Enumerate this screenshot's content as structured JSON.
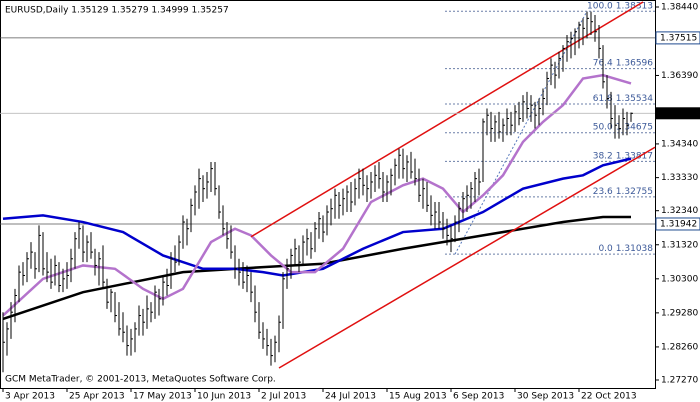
{
  "chart_data": {
    "type": "ohlc",
    "title": "EURUSD,Daily  1.35129 1.35279 1.34999 1.35257",
    "copyright": "GCM MetaTrader, © 2001-2013, MetaQuotes Software Corp.",
    "color": "#000000",
    "xlim": [
      -0.75,
      163
    ],
    "ylim": [
      1.2703,
      1.3862
    ],
    "xticks": [
      {
        "value": 0,
        "label": "3 Apr 2013"
      },
      {
        "value": 16,
        "label": "25 Apr 2013"
      },
      {
        "value": 32,
        "label": "17 May 2013"
      },
      {
        "value": 48,
        "label": "10 Jun 2013"
      },
      {
        "value": 64,
        "label": "2 Jul 2013"
      },
      {
        "value": 80,
        "label": "24 Jul 2013"
      },
      {
        "value": 96,
        "label": "15 Aug 2013"
      },
      {
        "value": 112,
        "label": "6 Sep 2013"
      },
      {
        "value": 128,
        "label": "30 Sep 2013"
      },
      {
        "value": 144,
        "label": "22 Oct 2013"
      }
    ],
    "yticks": [
      {
        "value": 1.3844,
        "label": "1.38440"
      },
      {
        "value": 1.3639,
        "label": "1.36390"
      },
      {
        "value": 1.3434,
        "label": "1.34340"
      },
      {
        "value": 1.3333,
        "label": "1.33330"
      },
      {
        "value": 1.3234,
        "label": "1.32340"
      },
      {
        "value": 1.3132,
        "label": "1.31320"
      },
      {
        "value": 1.303,
        "label": "1.30300"
      },
      {
        "value": 1.2928,
        "label": "1.29280"
      },
      {
        "value": 1.2826,
        "label": "1.28260"
      },
      {
        "value": 1.2727,
        "label": "1.27270"
      }
    ],
    "high": [
      1.293,
      1.29,
      1.296,
      1.3,
      1.307,
      1.308,
      1.311,
      1.314,
      1.311,
      1.319,
      1.317,
      1.311,
      1.309,
      1.31,
      1.308,
      1.306,
      1.308,
      1.312,
      1.317,
      1.32,
      1.319,
      1.316,
      1.317,
      1.312,
      1.311,
      1.313,
      1.303,
      1.3,
      1.299,
      1.296,
      1.293,
      1.289,
      1.288,
      1.29,
      1.295,
      1.294,
      1.298,
      1.296,
      1.301,
      1.3,
      1.304,
      1.306,
      1.311,
      1.313,
      1.316,
      1.322,
      1.321,
      1.327,
      1.331,
      1.336,
      1.334,
      1.335,
      1.338,
      1.338,
      1.331,
      1.325,
      1.32,
      1.319,
      1.313,
      1.309,
      1.308,
      1.307,
      1.305,
      1.301,
      1.296,
      1.29,
      1.288,
      1.285,
      1.286,
      1.292,
      1.305,
      1.309,
      1.312,
      1.315,
      1.313,
      1.316,
      1.318,
      1.317,
      1.32,
      1.323,
      1.322,
      1.325,
      1.327,
      1.33,
      1.329,
      1.33,
      1.331,
      1.332,
      1.333,
      1.336,
      1.336,
      1.334,
      1.335,
      1.337,
      1.338,
      1.335,
      1.334,
      1.336,
      1.339,
      1.342,
      1.342,
      1.34,
      1.341,
      1.339,
      1.336,
      1.333,
      1.332,
      1.328,
      1.326,
      1.326,
      1.323,
      1.321,
      1.319,
      1.322,
      1.326,
      1.329,
      1.331,
      1.332,
      1.335,
      1.336,
      1.351,
      1.354,
      1.353,
      1.352,
      1.353,
      1.351,
      1.354,
      1.353,
      1.355,
      1.356,
      1.358,
      1.359,
      1.358,
      1.356,
      1.357,
      1.36,
      1.365,
      1.369,
      1.368,
      1.371,
      1.373,
      1.376,
      1.377,
      1.378,
      1.38,
      1.381,
      1.383,
      1.383,
      1.382,
      1.379,
      1.373,
      1.364,
      1.359,
      1.355,
      1.352,
      1.354,
      1.353,
      1.35279
    ],
    "low": [
      1.275,
      1.28,
      1.285,
      1.29,
      1.296,
      1.301,
      1.302,
      1.306,
      1.303,
      1.305,
      1.304,
      1.302,
      1.3,
      1.301,
      1.299,
      1.299,
      1.3,
      1.302,
      1.306,
      1.312,
      1.308,
      1.308,
      1.309,
      1.304,
      1.301,
      1.3,
      1.294,
      1.293,
      1.29,
      1.286,
      1.284,
      1.28,
      1.28,
      1.281,
      1.286,
      1.286,
      1.288,
      1.29,
      1.291,
      1.292,
      1.295,
      1.298,
      1.3,
      1.305,
      1.307,
      1.312,
      1.313,
      1.317,
      1.322,
      1.324,
      1.326,
      1.327,
      1.329,
      1.328,
      1.321,
      1.316,
      1.312,
      1.309,
      1.303,
      1.301,
      1.3,
      1.299,
      1.296,
      1.29,
      1.285,
      1.282,
      1.28,
      1.277,
      1.278,
      1.281,
      1.288,
      1.3,
      1.303,
      1.307,
      1.305,
      1.307,
      1.31,
      1.309,
      1.311,
      1.315,
      1.314,
      1.316,
      1.319,
      1.321,
      1.321,
      1.322,
      1.323,
      1.323,
      1.325,
      1.327,
      1.328,
      1.326,
      1.327,
      1.329,
      1.33,
      1.326,
      1.326,
      1.328,
      1.331,
      1.333,
      1.333,
      1.332,
      1.333,
      1.331,
      1.326,
      1.324,
      1.323,
      1.319,
      1.318,
      1.318,
      1.315,
      1.313,
      1.311,
      1.314,
      1.317,
      1.321,
      1.323,
      1.324,
      1.326,
      1.328,
      1.332,
      1.346,
      1.344,
      1.344,
      1.345,
      1.344,
      1.346,
      1.346,
      1.347,
      1.349,
      1.35,
      1.351,
      1.35,
      1.348,
      1.349,
      1.352,
      1.355,
      1.361,
      1.36,
      1.363,
      1.365,
      1.368,
      1.369,
      1.37,
      1.372,
      1.373,
      1.375,
      1.376,
      1.374,
      1.369,
      1.36,
      1.354,
      1.348,
      1.345,
      1.345,
      1.346,
      1.346,
      1.34999
    ],
    "close": [
      1.284,
      1.288,
      1.293,
      1.298,
      1.305,
      1.304,
      1.309,
      1.311,
      1.306,
      1.316,
      1.306,
      1.305,
      1.302,
      1.307,
      1.301,
      1.303,
      1.304,
      1.309,
      1.315,
      1.318,
      1.311,
      1.314,
      1.311,
      1.307,
      1.309,
      1.302,
      1.296,
      1.299,
      1.292,
      1.288,
      1.287,
      1.283,
      1.285,
      1.288,
      1.292,
      1.29,
      1.294,
      1.293,
      1.299,
      1.297,
      1.302,
      1.301,
      1.309,
      1.308,
      1.314,
      1.32,
      1.318,
      1.325,
      1.329,
      1.333,
      1.33,
      1.332,
      1.336,
      1.33,
      1.323,
      1.318,
      1.315,
      1.311,
      1.306,
      1.305,
      1.302,
      1.304,
      1.299,
      1.293,
      1.287,
      1.285,
      1.283,
      1.28,
      1.284,
      1.29,
      1.303,
      1.306,
      1.31,
      1.312,
      1.308,
      1.314,
      1.315,
      1.312,
      1.318,
      1.321,
      1.317,
      1.323,
      1.324,
      1.328,
      1.325,
      1.327,
      1.329,
      1.326,
      1.33,
      1.333,
      1.331,
      1.33,
      1.332,
      1.334,
      1.333,
      1.329,
      1.332,
      1.334,
      1.337,
      1.34,
      1.336,
      1.338,
      1.335,
      1.333,
      1.328,
      1.33,
      1.325,
      1.322,
      1.323,
      1.32,
      1.318,
      1.316,
      1.315,
      1.32,
      1.324,
      1.327,
      1.328,
      1.33,
      1.333,
      1.332,
      1.35,
      1.352,
      1.348,
      1.35,
      1.347,
      1.349,
      1.351,
      1.349,
      1.353,
      1.351,
      1.356,
      1.354,
      1.355,
      1.352,
      1.354,
      1.357,
      1.363,
      1.367,
      1.364,
      1.369,
      1.372,
      1.374,
      1.375,
      1.377,
      1.379,
      1.378,
      1.381,
      1.38,
      1.377,
      1.372,
      1.362,
      1.357,
      1.351,
      1.349,
      1.348,
      1.351,
      1.349,
      1.35257
    ],
    "series": [
      {
        "color": "#000000",
        "x": [
          0,
          20,
          45,
          65,
          80,
          100,
          120,
          140,
          150,
          157
        ],
        "values": [
          1.291,
          1.299,
          1.305,
          1.3065,
          1.3075,
          1.312,
          1.316,
          1.32,
          1.3215,
          1.3215
        ]
      },
      {
        "color": "#0000cc",
        "x": [
          0,
          10,
          20,
          30,
          40,
          50,
          58,
          65,
          70,
          80,
          90,
          100,
          110,
          120,
          130,
          140,
          145,
          150,
          157
        ],
        "values": [
          1.321,
          1.322,
          1.32,
          1.317,
          1.31,
          1.306,
          1.306,
          1.305,
          1.304,
          1.306,
          1.312,
          1.317,
          1.318,
          1.323,
          1.33,
          1.333,
          1.334,
          1.337,
          1.339
        ]
      },
      {
        "color": "#b473cc",
        "x": [
          0,
          10,
          20,
          28,
          35,
          40,
          45,
          52,
          58,
          62,
          67,
          72,
          78,
          85,
          92,
          100,
          105,
          110,
          115,
          120,
          125,
          130,
          135,
          140,
          145,
          150,
          157
        ],
        "values": [
          1.292,
          1.303,
          1.307,
          1.306,
          1.3,
          1.297,
          1.3,
          1.314,
          1.318,
          1.316,
          1.31,
          1.305,
          1.305,
          1.312,
          1.326,
          1.331,
          1.333,
          1.33,
          1.323,
          1.328,
          1.334,
          1.344,
          1.35,
          1.355,
          1.363,
          1.364,
          1.3615
        ]
      }
    ],
    "trendlines": [
      {
        "x": [
          62,
          160
        ],
        "y": [
          1.3156,
          1.3859
        ]
      },
      {
        "x": [
          69,
          163
        ],
        "y": [
          1.2763,
          1.3424
        ]
      }
    ],
    "fibo": {
      "x": [
        113,
        146
      ],
      "y": [
        1.31038,
        1.38313
      ],
      "levels": [
        {
          "label": "100.0",
          "value": 1.38313
        },
        {
          "label": "76.4",
          "value": 1.36596
        },
        {
          "label": "61.8",
          "value": 1.35534
        },
        {
          "label": "50.0",
          "value": 1.34675
        },
        {
          "label": "38.2",
          "value": 1.33817
        },
        {
          "label": "23.6",
          "value": 1.32755
        },
        {
          "label": "0.0",
          "value": 1.31038
        }
      ]
    },
    "hlines": [
      1.37515,
      1.31942
    ]
  }
}
